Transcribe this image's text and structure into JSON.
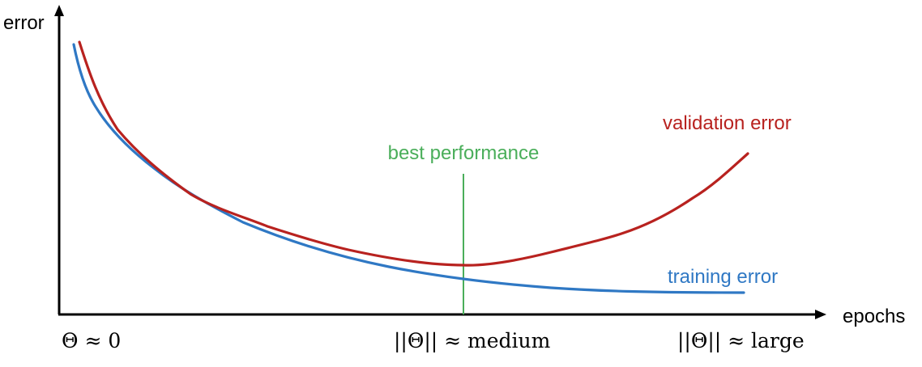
{
  "axes": {
    "y_label": "error",
    "x_label": "epochs"
  },
  "annotations": {
    "best_performance": "best performance",
    "validation_label": "validation error",
    "training_label": "training error"
  },
  "x_markers": {
    "start": "Θ ≈ 0",
    "middle": "||Θ|| ≈ medium",
    "end": "||Θ|| ≈ large"
  },
  "colors": {
    "axis": "#000000",
    "validation": "#b8221f",
    "training": "#2f78c4",
    "best": "#4aae5a"
  }
}
